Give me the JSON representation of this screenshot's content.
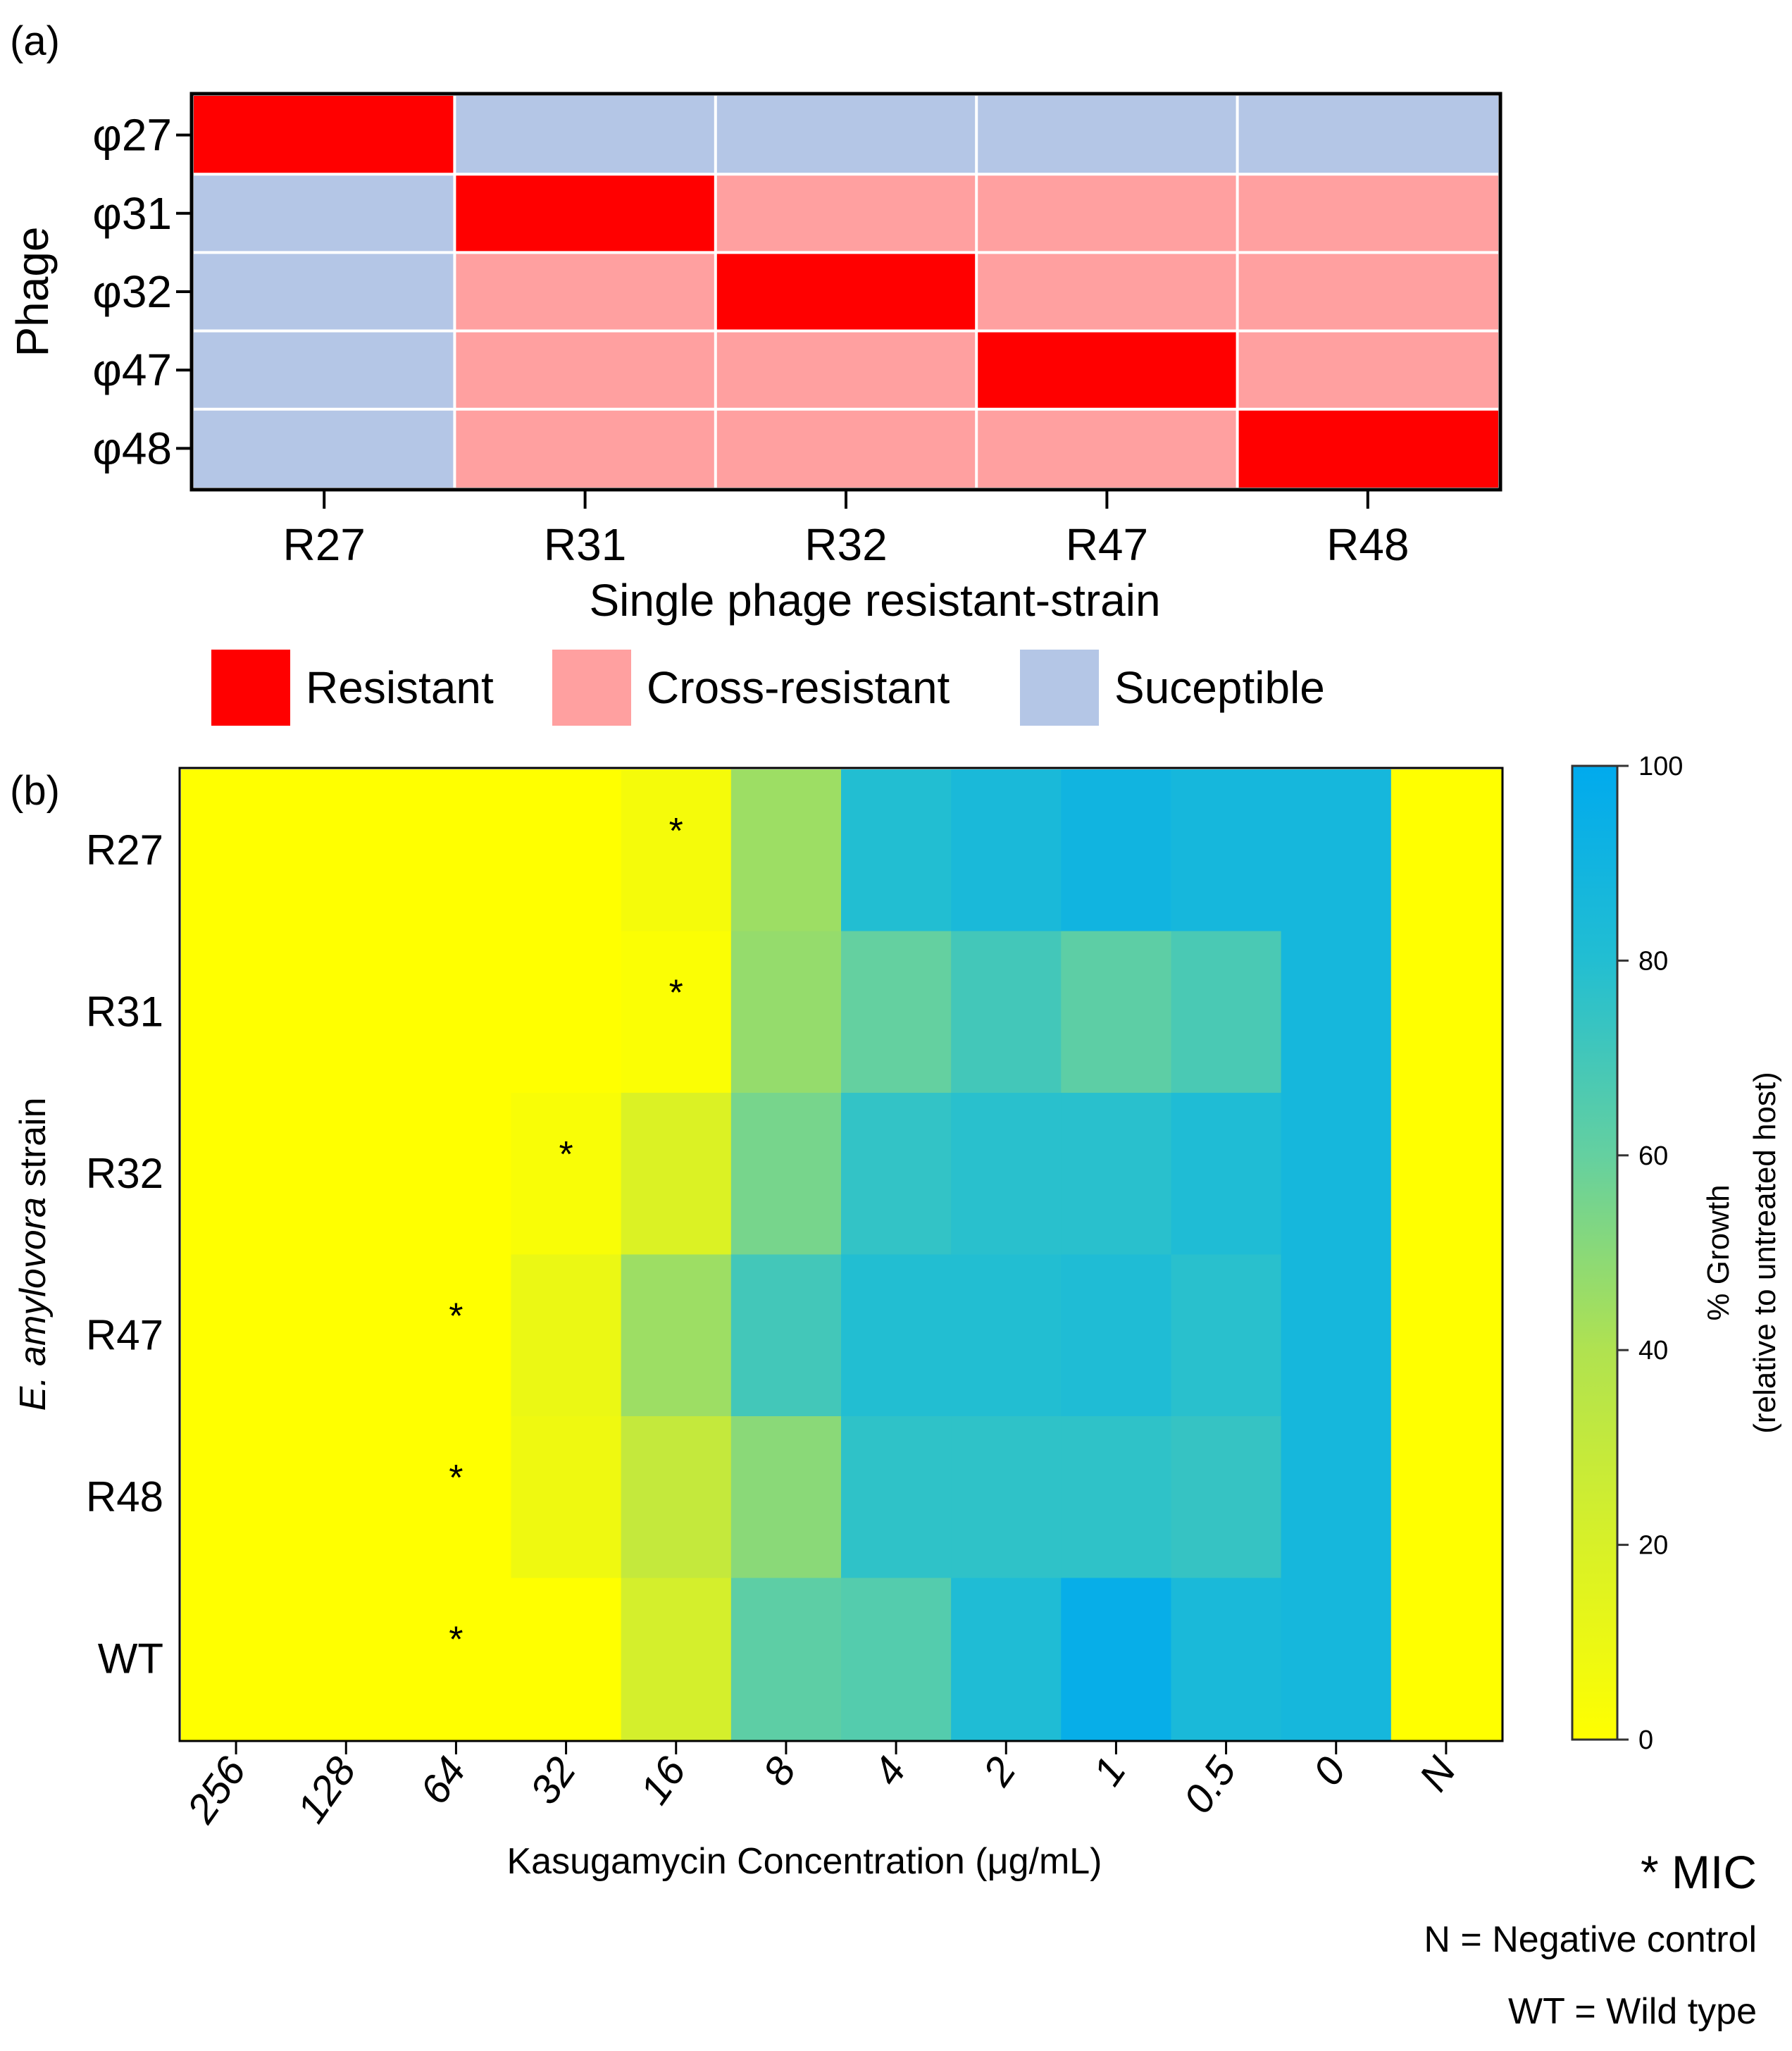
{
  "chart_data": [
    {
      "type": "heatmap",
      "panel_label": "(a)",
      "ylabel": "Phage",
      "xlabel": "Single phage resistant-strain",
      "y_categories": [
        "φ27",
        "φ31",
        "φ32",
        "φ47",
        "φ48"
      ],
      "x_categories": [
        "R27",
        "R31",
        "R32",
        "R47",
        "R48"
      ],
      "matrix": [
        [
          "Resistant",
          "Suceptible",
          "Suceptible",
          "Suceptible",
          "Suceptible"
        ],
        [
          "Suceptible",
          "Resistant",
          "Cross-resistant",
          "Cross-resistant",
          "Cross-resistant"
        ],
        [
          "Suceptible",
          "Cross-resistant",
          "Resistant",
          "Cross-resistant",
          "Cross-resistant"
        ],
        [
          "Suceptible",
          "Cross-resistant",
          "Cross-resistant",
          "Resistant",
          "Cross-resistant"
        ],
        [
          "Suceptible",
          "Cross-resistant",
          "Cross-resistant",
          "Cross-resistant",
          "Resistant"
        ]
      ],
      "legend": [
        {
          "label": "Resistant",
          "color": "#ff0000"
        },
        {
          "label": "Cross-resistant",
          "color": "#ffa0a0"
        },
        {
          "label": "Suceptible",
          "color": "#b4c6e6"
        }
      ]
    },
    {
      "type": "heatmap",
      "panel_label": "(b)",
      "ylabel_italic": "E. amylovora",
      "ylabel_rest": " strain",
      "xlabel": "Kasugamycin Concentration (μg/mL)",
      "y_categories": [
        "R27",
        "R31",
        "R32",
        "R47",
        "R48",
        "WT"
      ],
      "x_categories": [
        "256",
        "128",
        "64",
        "32",
        "16",
        "8",
        "4",
        "2",
        "1",
        "0.5",
        "0",
        "N"
      ],
      "values": [
        [
          0,
          0,
          0,
          0,
          5,
          45,
          80,
          85,
          90,
          87,
          87,
          0
        ],
        [
          0,
          0,
          0,
          0,
          2,
          47,
          60,
          70,
          62,
          68,
          87,
          0
        ],
        [
          0,
          0,
          0,
          3,
          18,
          55,
          75,
          78,
          78,
          82,
          87,
          0
        ],
        [
          0,
          0,
          0,
          10,
          45,
          70,
          80,
          80,
          82,
          78,
          87,
          0
        ],
        [
          0,
          0,
          0,
          8,
          30,
          50,
          76,
          76,
          76,
          74,
          87,
          0
        ],
        [
          0,
          0,
          0,
          0,
          22,
          62,
          65,
          82,
          96,
          85,
          87,
          0
        ]
      ],
      "mic_markers": [
        {
          "row": "R27",
          "col": "16"
        },
        {
          "row": "R31",
          "col": "16"
        },
        {
          "row": "R32",
          "col": "32"
        },
        {
          "row": "R47",
          "col": "64"
        },
        {
          "row": "R48",
          "col": "64"
        },
        {
          "row": "WT",
          "col": "64"
        }
      ],
      "star_symbol": "*",
      "colorbar": {
        "title_line1": "% Growth",
        "title_line2": "(relative to untreated host)",
        "ticks": [
          "0",
          "20",
          "40",
          "60",
          "80",
          "100"
        ],
        "range": [
          0,
          100
        ],
        "color_low": "#ffff00",
        "color_high": "#00aaee"
      },
      "notes": {
        "mic": "* MIC",
        "negative_control": "N = Negative control",
        "wild_type": "WT = Wild type"
      }
    }
  ]
}
